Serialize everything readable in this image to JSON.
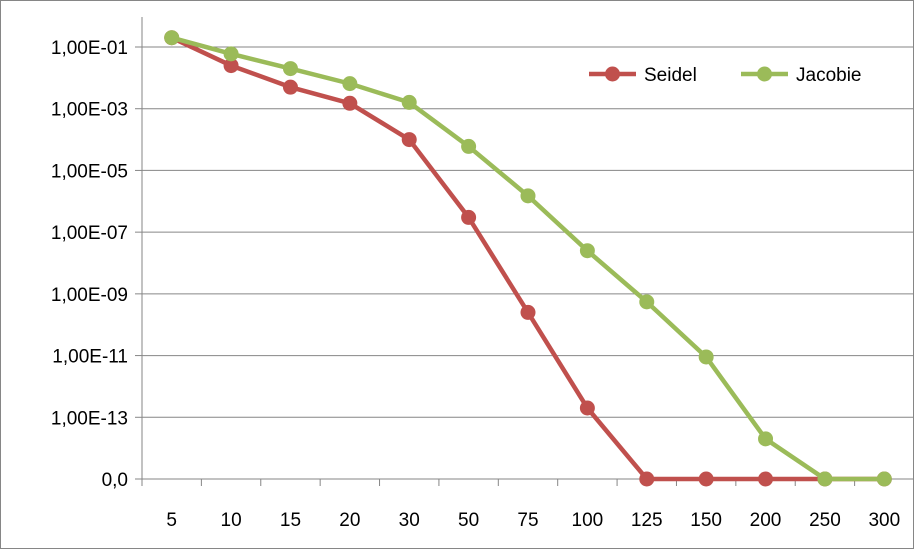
{
  "chart_data": {
    "type": "line",
    "title": "",
    "xlabel": "",
    "ylabel": "",
    "y_scale": "log",
    "grid": "horizontal",
    "legend_position": "top-right",
    "categories": [
      "5",
      "10",
      "15",
      "20",
      "30",
      "50",
      "75",
      "100",
      "125",
      "150",
      "200",
      "250",
      "300"
    ],
    "y_ticks": [
      "1,00E-01",
      "1,00E-03",
      "1,00E-05",
      "1,00E-07",
      "1,00E-09",
      "1,00E-11",
      "1,00E-13",
      "0,0"
    ],
    "y_tick_exponents": [
      -1,
      -3,
      -5,
      -7,
      -9,
      -11,
      -13,
      -15
    ],
    "series": [
      {
        "name": "Seidel",
        "color": "#c0504d",
        "values": [
          0.2,
          0.025,
          0.005,
          0.0015,
          0.0001,
          3e-07,
          2.5e-10,
          2e-13,
          0,
          0,
          0,
          0,
          0
        ]
      },
      {
        "name": "Jacobie",
        "color": "#9bbb59",
        "values": [
          0.2,
          0.06,
          0.02,
          0.0065,
          0.0016,
          6e-05,
          1.5e-06,
          2.5e-08,
          5.5e-10,
          9e-12,
          2e-14,
          0,
          0
        ]
      }
    ]
  }
}
